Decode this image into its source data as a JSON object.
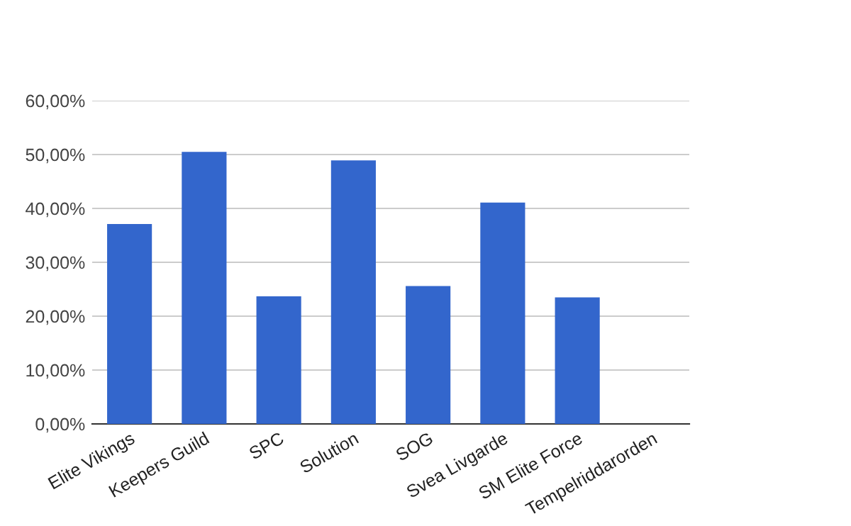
{
  "chart_data": {
    "type": "bar",
    "categories": [
      "Elite Vikings",
      "Keepers Guild",
      "SPC",
      "Solution",
      "SOG",
      "Svea Livgarde",
      "SM Elite Force",
      "Tempelriddarorden"
    ],
    "values": [
      37.1,
      50.5,
      23.7,
      48.9,
      25.6,
      41.1,
      23.5,
      0
    ],
    "color": "#3366cc",
    "ylim": [
      0,
      60
    ],
    "yticks": [
      {
        "value": 0,
        "label": "0,00%"
      },
      {
        "value": 10,
        "label": "10,00%"
      },
      {
        "value": 20,
        "label": "20,00%"
      },
      {
        "value": 30,
        "label": "30,00%"
      },
      {
        "value": 40,
        "label": "40,00%"
      },
      {
        "value": 50,
        "label": "50,00%"
      },
      {
        "value": 60,
        "label": "60,00%"
      }
    ],
    "grid": "y"
  }
}
